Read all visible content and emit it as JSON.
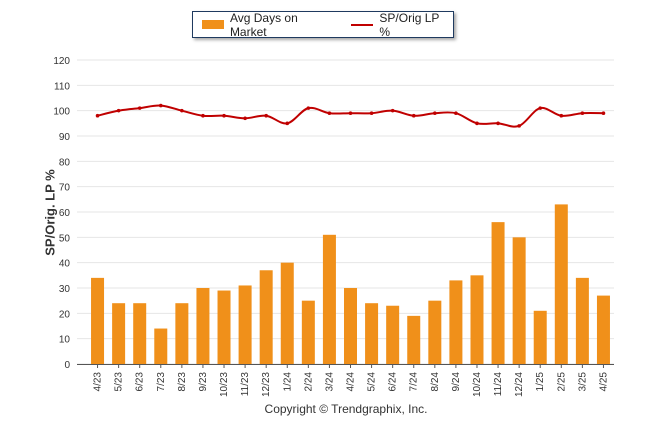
{
  "chart_data": {
    "type": "bar",
    "categories": [
      "4/23",
      "5/23",
      "6/23",
      "7/23",
      "8/23",
      "9/23",
      "10/23",
      "11/23",
      "12/23",
      "1/24",
      "2/24",
      "3/24",
      "4/24",
      "5/24",
      "6/24",
      "7/24",
      "8/24",
      "9/24",
      "10/24",
      "11/24",
      "12/24",
      "1/25",
      "2/25",
      "3/25",
      "4/25"
    ],
    "series": [
      {
        "name": "Avg Days on Market",
        "type": "bar",
        "values": [
          34,
          24,
          24,
          14,
          24,
          30,
          29,
          31,
          37,
          40,
          25,
          51,
          30,
          24,
          23,
          19,
          25,
          33,
          35,
          56,
          50,
          21,
          63,
          34,
          27
        ]
      },
      {
        "name": "SP/Orig LP %",
        "type": "line",
        "values": [
          98,
          100,
          101,
          102,
          100,
          98,
          98,
          97,
          98,
          95,
          101,
          99,
          99,
          99,
          100,
          98,
          99,
          99,
          95,
          95,
          94,
          101,
          98,
          99,
          99
        ]
      }
    ],
    "ylabel": "SP/Orig. LP %",
    "ylim": [
      0,
      120
    ],
    "yticks": [
      0,
      10,
      20,
      30,
      40,
      50,
      60,
      70,
      80,
      90,
      100,
      110,
      120
    ],
    "grid": true,
    "legend": "top-center",
    "footer": "Copyright © Trendgraphix, Inc.",
    "colors": {
      "bars": "#f0901a",
      "line": "#c00000",
      "grid": "#e6e6e6",
      "axis": "#555555"
    }
  }
}
